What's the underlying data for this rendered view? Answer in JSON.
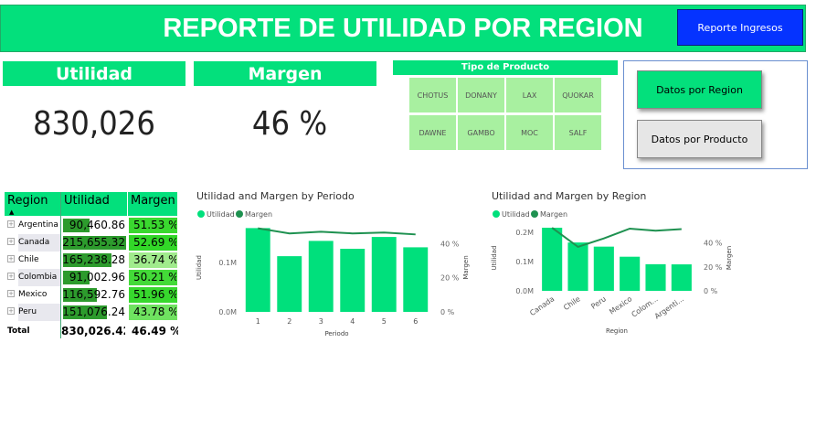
{
  "header": {
    "title": "REPORTE DE UTILIDAD POR REGION",
    "button": "Reporte Ingresos"
  },
  "cards": [
    {
      "label": "Utilidad",
      "value": "830,026"
    },
    {
      "label": "Margen",
      "value": "46 %"
    }
  ],
  "slicer": {
    "title": "Tipo de Producto",
    "items": [
      "CHOTUS",
      "DONANY",
      "LAX",
      "QUOKAR",
      "DAWNE",
      "GAMBO",
      "MOC",
      "SALF"
    ]
  },
  "buttons": [
    "Datos por Region",
    "Datos por Producto"
  ],
  "table": {
    "columns": [
      "Region",
      "Utilidad",
      "Margen"
    ],
    "rows": [
      [
        "Argentina",
        "90,460.86",
        "51.53 %"
      ],
      [
        "Canada",
        "215,655.32",
        "52.69 %"
      ],
      [
        "Chile",
        "165,238.28",
        "36.74 %"
      ],
      [
        "Colombia",
        "91,002.96",
        "50.21 %"
      ],
      [
        "Mexico",
        "116,592.76",
        "51.96 %"
      ],
      [
        "Peru",
        "151,076.24",
        "43.78 %"
      ]
    ],
    "total": [
      "Total",
      "830,026.42",
      "46.49 %"
    ]
  },
  "chart_data": [
    {
      "type": "combo",
      "title": "Utilidad and Margen by Periodo",
      "x_label": "Periodo",
      "y_label": "Utilidad",
      "y2_label": "Margen",
      "categories": [
        "1",
        "2",
        "3",
        "4",
        "5",
        "6"
      ],
      "series": [
        {
          "name": "Utilidad",
          "color": "#00e07c",
          "values": [
            170000,
            113000,
            144000,
            128000,
            152000,
            131000
          ]
        },
        {
          "name": "Margen",
          "color": "#1e9150",
          "axis": "y2",
          "values": [
            49,
            46,
            47,
            46,
            46.5,
            45.4
          ]
        }
      ],
      "ylim": [
        0,
        180000
      ],
      "yticks": [
        {
          "value": 0,
          "label": "0.0M"
        },
        {
          "value": 100000,
          "label": "0.1M"
        }
      ],
      "y2lim": [
        0,
        52
      ],
      "y2ticks": [
        {
          "value": 0,
          "label": "0 %"
        },
        {
          "value": 20,
          "label": "20 %"
        },
        {
          "value": 40,
          "label": "40 %"
        }
      ]
    },
    {
      "type": "combo",
      "title": "Utilidad and Margen by Region",
      "x_label": "Region",
      "y_label": "Utilidad",
      "y2_label": "Margen",
      "categories": [
        "Canada",
        "Chile",
        "Peru",
        "Mexico",
        "Colom...",
        "Argenti..."
      ],
      "series": [
        {
          "name": "Utilidad",
          "color": "#00e07c",
          "values": [
            215655,
            165238,
            151076,
            116593,
            91003,
            90461
          ]
        },
        {
          "name": "Margen",
          "color": "#1e9150",
          "axis": "y2",
          "values": [
            52.69,
            36.74,
            43.78,
            51.96,
            50.21,
            51.53
          ]
        }
      ],
      "ylim": [
        0,
        225000
      ],
      "yticks": [
        {
          "value": 0,
          "label": "0.0M"
        },
        {
          "value": 100000,
          "label": "0.1M"
        },
        {
          "value": 200000,
          "label": "0.2M"
        }
      ],
      "y2lim": [
        0,
        55
      ],
      "y2ticks": [
        {
          "value": 0,
          "label": "0 %"
        },
        {
          "value": 20,
          "label": "20 %"
        },
        {
          "value": 40,
          "label": "40 %"
        }
      ]
    }
  ]
}
